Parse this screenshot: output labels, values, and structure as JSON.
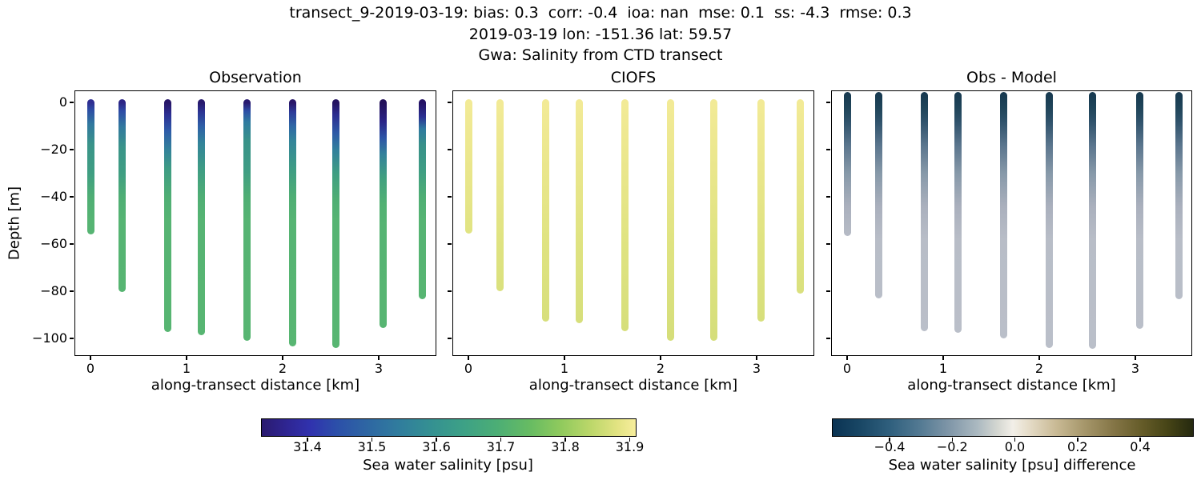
{
  "figure": {
    "suptitle_line1": "transect_9-2019-03-19: bias: 0.3  corr: -0.4  ioa: nan  mse: 0.1  ss: -4.3  rmse: 0.3",
    "suptitle_line2": "2019-03-19 lon: -151.36 lat: 59.57",
    "suptitle_line3": "Gwa: Salinity from CTD transect"
  },
  "chart_data": {
    "type": "scatter",
    "title": "Gwa: Salinity from CTD transect",
    "xlabel": "along-transect distance [km]",
    "ylabel": "Depth [m]",
    "xticks": [
      0,
      1,
      2,
      3
    ],
    "yticks": [
      0,
      -20,
      -40,
      -60,
      -80,
      -100
    ],
    "xlim": [
      -0.17,
      3.6
    ],
    "ylim": [
      5.1,
      -107.5
    ],
    "grid": false,
    "station_x_km": [
      0.0,
      0.333,
      0.808,
      1.158,
      1.625,
      2.1,
      2.558,
      3.042,
      3.458
    ],
    "panels": [
      {
        "title": "Observation",
        "value_units": "psu",
        "profiles": [
          {
            "x_km": 0.0,
            "top_m": 0,
            "bottom_m": -54.5,
            "grad": "obs1",
            "surface_value": 31.4,
            "bottom_value": 31.7
          },
          {
            "x_km": 0.333,
            "top_m": 0,
            "bottom_m": -78.7,
            "grad": "obs2",
            "surface_value": 31.4,
            "bottom_value": 31.7
          },
          {
            "x_km": 0.808,
            "top_m": 0,
            "bottom_m": -95.7,
            "grad": "obs3",
            "surface_value": 31.36,
            "bottom_value": 31.7
          },
          {
            "x_km": 1.158,
            "top_m": 0,
            "bottom_m": -97.3,
            "grad": "obs4",
            "surface_value": 31.36,
            "bottom_value": 31.7
          },
          {
            "x_km": 1.625,
            "top_m": 0,
            "bottom_m": -99.5,
            "grad": "obs5",
            "surface_value": 31.37,
            "bottom_value": 31.7
          },
          {
            "x_km": 2.1,
            "top_m": 0,
            "bottom_m": -102.0,
            "grad": "obs6",
            "surface_value": 31.36,
            "bottom_value": 31.7
          },
          {
            "x_km": 2.558,
            "top_m": 0,
            "bottom_m": -102.5,
            "grad": "obs7",
            "surface_value": 31.35,
            "bottom_value": 31.7
          },
          {
            "x_km": 3.042,
            "top_m": 0,
            "bottom_m": -94.0,
            "grad": "obs8",
            "surface_value": 31.34,
            "bottom_value": 31.7
          },
          {
            "x_km": 3.458,
            "top_m": 0,
            "bottom_m": -82.0,
            "grad": "obs9",
            "surface_value": 31.35,
            "bottom_value": 31.7
          }
        ]
      },
      {
        "title": "CIOFS",
        "value_units": "psu",
        "profiles": [
          {
            "x_km": 0.0,
            "top_m": 0,
            "bottom_m": -54.0,
            "grad": "model",
            "surface_value": 31.9,
            "bottom_value": 31.87
          },
          {
            "x_km": 0.333,
            "top_m": 0,
            "bottom_m": -78.5,
            "grad": "model",
            "surface_value": 31.9,
            "bottom_value": 31.86
          },
          {
            "x_km": 0.808,
            "top_m": 0,
            "bottom_m": -91.5,
            "grad": "model",
            "surface_value": 31.9,
            "bottom_value": 31.85
          },
          {
            "x_km": 1.158,
            "top_m": 0,
            "bottom_m": -92.0,
            "grad": "model",
            "surface_value": 31.9,
            "bottom_value": 31.85
          },
          {
            "x_km": 1.625,
            "top_m": 0,
            "bottom_m": -95.5,
            "grad": "model",
            "surface_value": 31.9,
            "bottom_value": 31.85
          },
          {
            "x_km": 2.1,
            "top_m": 0,
            "bottom_m": -99.5,
            "grad": "model",
            "surface_value": 31.9,
            "bottom_value": 31.84
          },
          {
            "x_km": 2.558,
            "top_m": 0,
            "bottom_m": -99.5,
            "grad": "model",
            "surface_value": 31.9,
            "bottom_value": 31.84
          },
          {
            "x_km": 3.042,
            "top_m": 0,
            "bottom_m": -91.5,
            "grad": "model",
            "surface_value": 31.9,
            "bottom_value": 31.85
          },
          {
            "x_km": 3.458,
            "top_m": 0,
            "bottom_m": -79.5,
            "grad": "model",
            "surface_value": 31.9,
            "bottom_value": 31.86
          }
        ]
      },
      {
        "title": "Obs - Model",
        "value_units": "psu difference",
        "profiles": [
          {
            "x_km": 0.0,
            "top_m": 5,
            "bottom_m": -55.0,
            "grad": "diff",
            "surface_value": -0.5,
            "bottom_value": -0.12
          },
          {
            "x_km": 0.333,
            "top_m": 5,
            "bottom_m": -81.5,
            "grad": "diff",
            "surface_value": -0.5,
            "bottom_value": -0.12
          },
          {
            "x_km": 0.808,
            "top_m": 5,
            "bottom_m": -95.5,
            "grad": "diff",
            "surface_value": -0.52,
            "bottom_value": -0.12
          },
          {
            "x_km": 1.158,
            "top_m": 5,
            "bottom_m": -96.0,
            "grad": "diff",
            "surface_value": -0.52,
            "bottom_value": -0.12
          },
          {
            "x_km": 1.625,
            "top_m": 5,
            "bottom_m": -98.5,
            "grad": "diff",
            "surface_value": -0.51,
            "bottom_value": -0.12
          },
          {
            "x_km": 2.1,
            "top_m": 5,
            "bottom_m": -102.5,
            "grad": "diff",
            "surface_value": -0.52,
            "bottom_value": -0.12
          },
          {
            "x_km": 2.558,
            "top_m": 5,
            "bottom_m": -103.0,
            "grad": "diff",
            "surface_value": -0.53,
            "bottom_value": -0.12
          },
          {
            "x_km": 3.042,
            "top_m": 5,
            "bottom_m": -94.5,
            "grad": "diff",
            "surface_value": -0.54,
            "bottom_value": -0.12
          },
          {
            "x_km": 3.458,
            "top_m": 5,
            "bottom_m": -82.0,
            "grad": "diff",
            "surface_value": -0.53,
            "bottom_value": -0.12
          }
        ]
      }
    ],
    "profile_gradients": {
      "obs1": [
        [
          0,
          "#2f2e92"
        ],
        [
          -3,
          "#2d4da5"
        ],
        [
          -9,
          "#31789f"
        ],
        [
          -18,
          "#3a9489"
        ],
        [
          -30,
          "#3f9e82"
        ],
        [
          -40,
          "#4fae74"
        ],
        [
          -50,
          "#56b473"
        ],
        [
          -120,
          "#58b671"
        ]
      ],
      "obs2": [
        [
          0,
          "#2c2586"
        ],
        [
          -3.5,
          "#2d4ba6"
        ],
        [
          -10,
          "#31789f"
        ],
        [
          -19,
          "#3a9489"
        ],
        [
          -30,
          "#3f9e82"
        ],
        [
          -40,
          "#4fae74"
        ],
        [
          -50,
          "#56b473"
        ],
        [
          -120,
          "#58b671"
        ]
      ],
      "obs3": [
        [
          0,
          "#271668"
        ],
        [
          -5,
          "#2c2f93"
        ],
        [
          -12,
          "#2e5ca8"
        ],
        [
          -20,
          "#33829a"
        ],
        [
          -28,
          "#3e9c84"
        ],
        [
          -40,
          "#4fae74"
        ],
        [
          -50,
          "#56b473"
        ],
        [
          -120,
          "#58b671"
        ]
      ],
      "obs4": [
        [
          0,
          "#281a6e"
        ],
        [
          -4,
          "#2c3595"
        ],
        [
          -10,
          "#2e60a7"
        ],
        [
          -17,
          "#32839a"
        ],
        [
          -28,
          "#3e9c84"
        ],
        [
          -40,
          "#4fae74"
        ],
        [
          -50,
          "#56b473"
        ],
        [
          -120,
          "#58b671"
        ]
      ],
      "obs5": [
        [
          0,
          "#291a70"
        ],
        [
          -3.5,
          "#2d4ea6"
        ],
        [
          -8,
          "#2f7aa0"
        ],
        [
          -16,
          "#389289"
        ],
        [
          -28,
          "#3e9c84"
        ],
        [
          -40,
          "#4fae74"
        ],
        [
          -50,
          "#56b473"
        ],
        [
          -120,
          "#58b671"
        ]
      ],
      "obs6": [
        [
          0,
          "#281668"
        ],
        [
          -4,
          "#2c3b99"
        ],
        [
          -10,
          "#2e68a5"
        ],
        [
          -16,
          "#33849a"
        ],
        [
          -28,
          "#3e9c84"
        ],
        [
          -40,
          "#4fae74"
        ],
        [
          -50,
          "#56b473"
        ],
        [
          -120,
          "#58b671"
        ]
      ],
      "obs7": [
        [
          0,
          "#251361"
        ],
        [
          -5,
          "#2b2c8f"
        ],
        [
          -13,
          "#2d5aa7"
        ],
        [
          -20,
          "#31809c"
        ],
        [
          -30,
          "#3f9e82"
        ],
        [
          -41,
          "#4fae74"
        ],
        [
          -50,
          "#56b473"
        ],
        [
          -120,
          "#58b671"
        ]
      ],
      "obs8": [
        [
          0,
          "#231059"
        ],
        [
          -8,
          "#2a2487"
        ],
        [
          -15,
          "#2d55a6"
        ],
        [
          -22,
          "#33829a"
        ],
        [
          -32,
          "#41a07f"
        ],
        [
          -43,
          "#52b173"
        ],
        [
          -52,
          "#56b473"
        ],
        [
          -120,
          "#58b671"
        ]
      ],
      "obs9": [
        [
          0,
          "#241265"
        ],
        [
          -6,
          "#2b3193"
        ],
        [
          -11,
          "#2f7aa0"
        ],
        [
          -18,
          "#389089"
        ],
        [
          -28,
          "#3e9c84"
        ],
        [
          -40,
          "#4fae74"
        ],
        [
          -50,
          "#56b473"
        ],
        [
          -120,
          "#58b671"
        ]
      ],
      "model": [
        [
          0,
          "#f2ea96"
        ],
        [
          -30,
          "#e9e68b"
        ],
        [
          -60,
          "#dfe381"
        ],
        [
          -100,
          "#d5de7a"
        ],
        [
          -120,
          "#d3dd79"
        ]
      ],
      "diff": [
        [
          5,
          "#16384f"
        ],
        [
          -2,
          "#1f4459"
        ],
        [
          -8,
          "#2f526b"
        ],
        [
          -18,
          "#5a758d"
        ],
        [
          -30,
          "#8799a9"
        ],
        [
          -44,
          "#aab0bd"
        ],
        [
          -58,
          "#b8bdc7"
        ],
        [
          -120,
          "#bbc0ca"
        ]
      ]
    },
    "colorbars": [
      {
        "label": "Sea water salinity [psu]",
        "cmap": "haline",
        "vmin": 31.328,
        "vmax": 31.908,
        "tick_values": [
          31.4,
          31.5,
          31.6,
          31.7,
          31.8,
          31.9
        ],
        "tick_labels": [
          "31.4",
          "31.5",
          "31.6",
          "31.7",
          "31.8",
          "31.9"
        ],
        "gradient": [
          [
            0,
            "#2a1a6f"
          ],
          [
            0.07,
            "#2f2694"
          ],
          [
            0.13,
            "#3032ae"
          ],
          [
            0.2,
            "#2c4fa9"
          ],
          [
            0.28,
            "#2e66a3"
          ],
          [
            0.36,
            "#307b9e"
          ],
          [
            0.45,
            "#349092"
          ],
          [
            0.54,
            "#3da186"
          ],
          [
            0.63,
            "#4cae75"
          ],
          [
            0.72,
            "#68bc62"
          ],
          [
            0.8,
            "#90ca5d"
          ],
          [
            0.88,
            "#bcd76a"
          ],
          [
            0.95,
            "#e2e382"
          ],
          [
            1,
            "#f7ee9d"
          ]
        ]
      },
      {
        "label": "Sea water salinity [psu] difference",
        "cmap": "diff",
        "vmin": -0.584,
        "vmax": 0.566,
        "tick_values": [
          -0.4,
          -0.2,
          0.0,
          0.2,
          0.4
        ],
        "tick_labels": [
          "−0.4",
          "−0.2",
          "0.0",
          "0.2",
          "0.4"
        ],
        "gradient": [
          [
            0,
            "#0a3353"
          ],
          [
            0.08,
            "#1a4866"
          ],
          [
            0.16,
            "#30607e"
          ],
          [
            0.24,
            "#527992"
          ],
          [
            0.32,
            "#7e95a7"
          ],
          [
            0.4,
            "#aab8c0"
          ],
          [
            0.46,
            "#d6d8d2"
          ],
          [
            0.5,
            "#f2efe8"
          ],
          [
            0.54,
            "#e7decb"
          ],
          [
            0.62,
            "#c9ba95"
          ],
          [
            0.7,
            "#a5966a"
          ],
          [
            0.78,
            "#847546"
          ],
          [
            0.86,
            "#645b28"
          ],
          [
            0.93,
            "#464416"
          ],
          [
            1,
            "#25290f"
          ]
        ]
      }
    ]
  }
}
